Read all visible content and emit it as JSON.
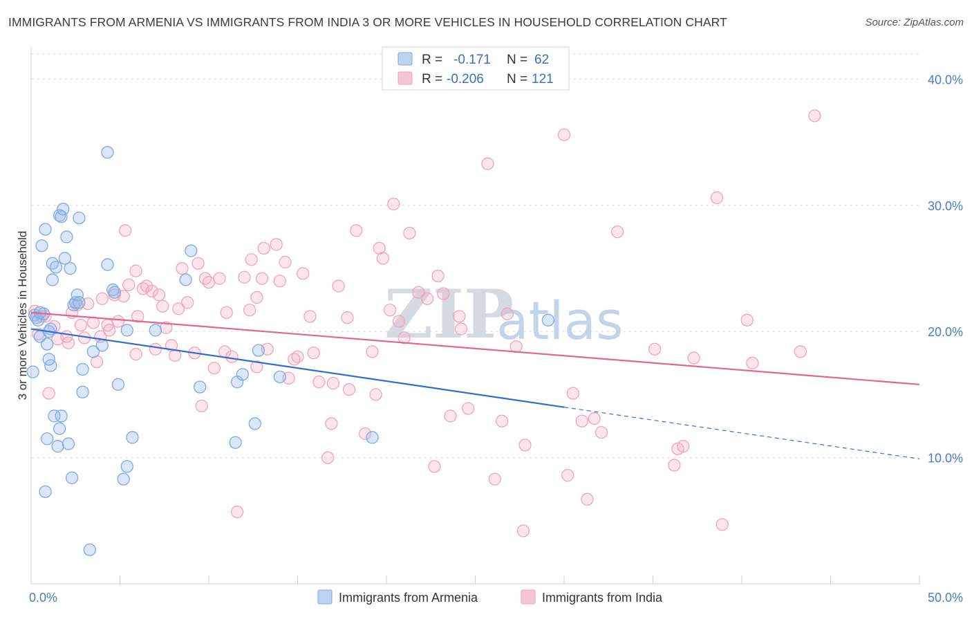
{
  "header": {
    "title": "IMMIGRANTS FROM ARMENIA VS IMMIGRANTS FROM INDIA 3 OR MORE VEHICLES IN HOUSEHOLD CORRELATION CHART",
    "source": "Source: ZipAtlas.com"
  },
  "watermark": {
    "zip": "ZIP",
    "atlas": "atlas"
  },
  "legend_box": {
    "rows": [
      {
        "r_label": "R =",
        "r_value": "-0.171",
        "n_label": "N =",
        "n_value": "62",
        "color": "#7fa8e0"
      },
      {
        "r_label": "R =",
        "r_value": "-0.206",
        "n_label": "N =",
        "n_value": "121",
        "color": "#f0a3bd"
      }
    ]
  },
  "chart_data": {
    "type": "scatter",
    "ylabel": "3 or more Vehicles in Household",
    "xlim": [
      0,
      50
    ],
    "ylim": [
      0,
      42
    ],
    "x_ticks": [
      {
        "value": 0,
        "label": "0.0%"
      },
      {
        "value": 50,
        "label": "50.0%"
      }
    ],
    "y_ticks": [
      {
        "value": 10,
        "label": "10.0%"
      },
      {
        "value": 20,
        "label": "20.0%"
      },
      {
        "value": 30,
        "label": "30.0%"
      },
      {
        "value": 40,
        "label": "40.0%"
      }
    ],
    "grid": true,
    "legend_position": "bottom",
    "series": [
      {
        "name": "Immigrants from Armenia",
        "color": "#7fa8e0",
        "line_color": "#2f6fd0",
        "trend": {
          "x0": 0,
          "y0": 20.2,
          "x1": 30,
          "y1": 14.0,
          "x_ext": 50,
          "y_ext": 9.9
        },
        "points": [
          [
            0.2,
            21.3
          ],
          [
            0.3,
            21.1
          ],
          [
            0.1,
            16.8
          ],
          [
            0.4,
            20.9
          ],
          [
            0.5,
            19.6
          ],
          [
            0.6,
            26.8
          ],
          [
            0.7,
            21.4
          ],
          [
            0.8,
            28.1
          ],
          [
            0.9,
            19.0
          ],
          [
            1.0,
            20.0
          ],
          [
            1.1,
            17.3
          ],
          [
            1.0,
            17.8
          ],
          [
            1.2,
            25.4
          ],
          [
            1.2,
            24.1
          ],
          [
            1.3,
            13.3
          ],
          [
            1.4,
            25.1
          ],
          [
            1.5,
            10.9
          ],
          [
            1.6,
            29.2
          ],
          [
            1.7,
            29.1
          ],
          [
            1.7,
            13.3
          ],
          [
            1.8,
            29.7
          ],
          [
            1.9,
            25.8
          ],
          [
            2.0,
            27.5
          ],
          [
            2.1,
            11.1
          ],
          [
            2.2,
            25.0
          ],
          [
            2.3,
            8.4
          ],
          [
            2.4,
            22.1
          ],
          [
            2.5,
            22.3
          ],
          [
            2.6,
            22.9
          ],
          [
            2.7,
            22.3
          ],
          [
            2.7,
            29.0
          ],
          [
            2.9,
            17.0
          ],
          [
            2.9,
            15.2
          ],
          [
            3.3,
            2.7
          ],
          [
            3.5,
            18.4
          ],
          [
            4.0,
            18.9
          ],
          [
            4.3,
            25.3
          ],
          [
            4.3,
            34.2
          ],
          [
            4.6,
            23.3
          ],
          [
            4.7,
            23.1
          ],
          [
            4.9,
            15.8
          ],
          [
            5.2,
            8.3
          ],
          [
            5.4,
            9.3
          ],
          [
            5.4,
            20.1
          ],
          [
            5.7,
            11.6
          ],
          [
            7.0,
            20.1
          ],
          [
            8.7,
            24.1
          ],
          [
            9.0,
            26.4
          ],
          [
            9.5,
            15.6
          ],
          [
            11.5,
            11.2
          ],
          [
            11.6,
            16.0
          ],
          [
            11.9,
            16.6
          ],
          [
            12.6,
            12.7
          ],
          [
            12.8,
            18.5
          ],
          [
            14.0,
            16.4
          ],
          [
            19.2,
            11.6
          ],
          [
            29.1,
            20.9
          ],
          [
            0.8,
            7.3
          ],
          [
            1.6,
            12.3
          ],
          [
            0.9,
            11.5
          ],
          [
            0.5,
            21.5
          ],
          [
            1.1,
            20.2
          ]
        ]
      },
      {
        "name": "Immigrants from India",
        "color": "#f0a3bd",
        "line_color": "#e2678f",
        "trend": {
          "x0": 0,
          "y0": 21.5,
          "x1": 50,
          "y1": 15.8
        },
        "points": [
          [
            0.2,
            21.6
          ],
          [
            0.4,
            19.8
          ],
          [
            0.6,
            21.2
          ],
          [
            1.0,
            15.1
          ],
          [
            1.3,
            20.4
          ],
          [
            1.5,
            19.4
          ],
          [
            2.0,
            19.6
          ],
          [
            2.1,
            19.1
          ],
          [
            2.3,
            21.5
          ],
          [
            2.6,
            22.1
          ],
          [
            2.8,
            20.5
          ],
          [
            3.0,
            19.5
          ],
          [
            3.2,
            22.2
          ],
          [
            3.5,
            20.7
          ],
          [
            3.9,
            19.6
          ],
          [
            4.0,
            22.6
          ],
          [
            4.3,
            20.5
          ],
          [
            4.4,
            20.1
          ],
          [
            4.7,
            22.9
          ],
          [
            4.9,
            20.8
          ],
          [
            5.2,
            22.8
          ],
          [
            5.3,
            28.0
          ],
          [
            5.5,
            23.7
          ],
          [
            5.9,
            24.8
          ],
          [
            6.0,
            21.2
          ],
          [
            6.3,
            23.4
          ],
          [
            6.5,
            23.6
          ],
          [
            6.8,
            23.2
          ],
          [
            7.0,
            18.6
          ],
          [
            7.2,
            22.9
          ],
          [
            7.4,
            22.0
          ],
          [
            7.6,
            20.3
          ],
          [
            7.9,
            18.9
          ],
          [
            8.1,
            18.1
          ],
          [
            8.3,
            21.8
          ],
          [
            8.5,
            25.0
          ],
          [
            8.8,
            22.3
          ],
          [
            9.2,
            18.3
          ],
          [
            9.4,
            25.4
          ],
          [
            9.6,
            14.1
          ],
          [
            9.8,
            24.2
          ],
          [
            10.0,
            23.9
          ],
          [
            10.3,
            17.1
          ],
          [
            10.6,
            24.2
          ],
          [
            10.9,
            18.4
          ],
          [
            11.0,
            21.5
          ],
          [
            11.3,
            18.0
          ],
          [
            11.6,
            5.7
          ],
          [
            12.0,
            24.3
          ],
          [
            12.3,
            21.7
          ],
          [
            12.4,
            25.7
          ],
          [
            12.7,
            22.7
          ],
          [
            13.0,
            24.2
          ],
          [
            13.1,
            26.6
          ],
          [
            13.3,
            18.6
          ],
          [
            13.8,
            26.9
          ],
          [
            14.0,
            24.0
          ],
          [
            14.3,
            25.5
          ],
          [
            14.5,
            16.3
          ],
          [
            14.8,
            17.8
          ],
          [
            15.0,
            18.0
          ],
          [
            15.3,
            24.6
          ],
          [
            15.7,
            21.2
          ],
          [
            15.9,
            18.3
          ],
          [
            16.2,
            16.0
          ],
          [
            16.7,
            10.0
          ],
          [
            16.9,
            12.7
          ],
          [
            17.0,
            15.9
          ],
          [
            17.3,
            23.6
          ],
          [
            17.8,
            21.1
          ],
          [
            17.9,
            15.4
          ],
          [
            18.3,
            28.0
          ],
          [
            18.8,
            11.9
          ],
          [
            19.2,
            18.4
          ],
          [
            19.4,
            15.0
          ],
          [
            19.6,
            26.6
          ],
          [
            19.8,
            25.8
          ],
          [
            20.2,
            21.7
          ],
          [
            20.4,
            30.1
          ],
          [
            20.7,
            20.8
          ],
          [
            21.0,
            19.5
          ],
          [
            21.3,
            27.8
          ],
          [
            21.8,
            23.1
          ],
          [
            22.3,
            22.6
          ],
          [
            22.7,
            9.3
          ],
          [
            22.9,
            24.4
          ],
          [
            23.2,
            23.0
          ],
          [
            23.6,
            13.3
          ],
          [
            24.1,
            21.2
          ],
          [
            24.2,
            20.2
          ],
          [
            24.6,
            13.9
          ],
          [
            25.7,
            33.3
          ],
          [
            26.1,
            8.3
          ],
          [
            26.5,
            12.9
          ],
          [
            26.8,
            21.4
          ],
          [
            27.3,
            18.8
          ],
          [
            27.7,
            4.2
          ],
          [
            27.8,
            11.0
          ],
          [
            30.0,
            35.6
          ],
          [
            30.2,
            8.6
          ],
          [
            30.5,
            15.1
          ],
          [
            31.0,
            12.9
          ],
          [
            31.3,
            6.7
          ],
          [
            31.7,
            13.1
          ],
          [
            32.1,
            12.0
          ],
          [
            33.0,
            27.9
          ],
          [
            35.1,
            18.6
          ],
          [
            36.2,
            9.4
          ],
          [
            36.4,
            10.7
          ],
          [
            36.7,
            10.9
          ],
          [
            37.3,
            17.9
          ],
          [
            38.6,
            30.6
          ],
          [
            38.9,
            4.7
          ],
          [
            40.3,
            20.9
          ],
          [
            40.6,
            17.5
          ],
          [
            43.3,
            18.4
          ],
          [
            44.1,
            37.1
          ],
          [
            0.8,
            21.2
          ],
          [
            3.7,
            17.6
          ],
          [
            5.9,
            18.2
          ],
          [
            12.7,
            17.2
          ]
        ]
      }
    ]
  }
}
